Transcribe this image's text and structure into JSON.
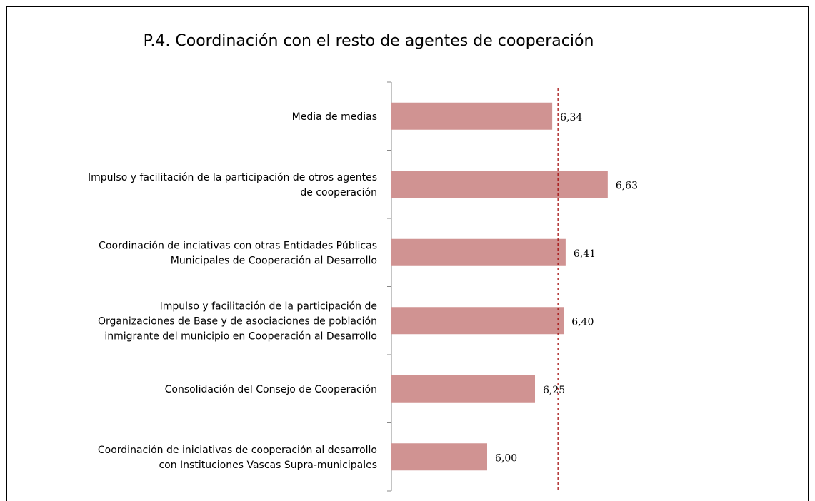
{
  "chart_data": {
    "type": "bar",
    "orientation": "horizontal",
    "title": "P.4. Coordinación con el resto de agentes de cooperación",
    "categories": [
      "Media de medias",
      "Impulso y facilitación de la participación de otros agentes\nde cooperación",
      "Coordinación de inciativas con otras Entidades Públicas\nMunicipales de Cooperación al Desarrollo",
      "Impulso y facilitación de la participación de\nOrganizaciones de Base y de asociaciones de población\ninmigrante del municipio en Cooperación al Desarrollo",
      "Consolidación del Consejo de Cooperación",
      "Coordinación de iniciativas de cooperación al desarrollo\ncon Instituciones Vascas Supra-municipales"
    ],
    "values": [
      6.34,
      6.63,
      6.41,
      6.4,
      6.25,
      6.0
    ],
    "value_labels": [
      "6,34",
      "6,63",
      "6,41",
      "6,40",
      "6,25",
      "6,00"
    ],
    "color": "#d09392",
    "xlim": [
      5.5,
      7.0
    ],
    "reference_line": {
      "value": 6.37,
      "color": "#a00000"
    }
  }
}
